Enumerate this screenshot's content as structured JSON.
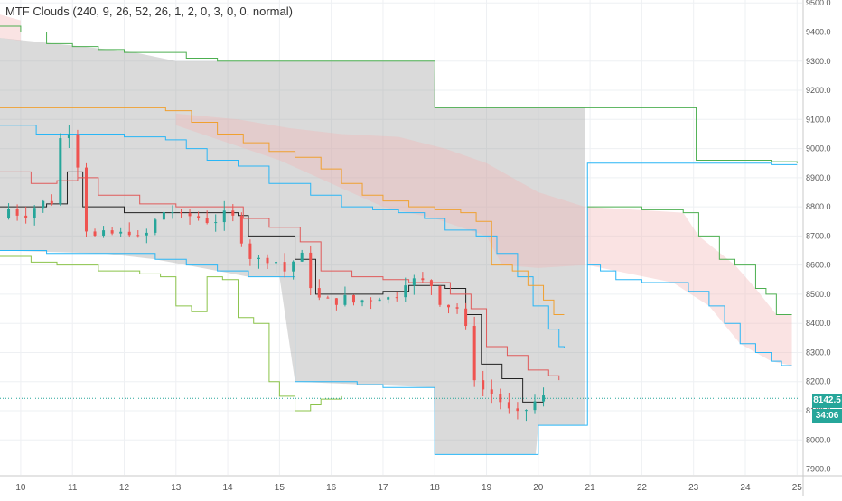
{
  "indicator": {
    "title": "MTF Clouds (240, 9, 26, 52, 26, 1, 2, 0, 3, 0, 0, normal)"
  },
  "last_price": {
    "value": "8142.5",
    "countdown": "34:06"
  },
  "colors": {
    "background": "#ffffff",
    "grid": "#eef0f3",
    "axis_text": "#555555",
    "up": "#26a69a",
    "down": "#ef5350",
    "price_line": "#26a69a",
    "price_label_bg": "#26a69a",
    "cloud_grey": "#9e9e9e",
    "cloud_pink": "#f3b6b6",
    "line_green": "#4caf50",
    "line_blue": "#29b6f6",
    "line_orange": "#f0a030",
    "line_red": "#e05a5a",
    "line_black": "#222222",
    "line_lightgreen": "#8bc34a"
  },
  "chart_data": {
    "type": "line",
    "title": "",
    "xlabel": "",
    "ylabel": "",
    "x_ticks": [
      "10",
      "11",
      "12",
      "13",
      "14",
      "15",
      "16",
      "17",
      "18",
      "19",
      "20",
      "21",
      "22",
      "23",
      "24",
      "25"
    ],
    "y_ticks": [
      "7900.0",
      "8000.0",
      "8100.0",
      "8200.0",
      "8300.0",
      "8400.0",
      "8500.0",
      "8600.0",
      "8700.0",
      "8800.0",
      "8900.0",
      "9000.0",
      "9100.0",
      "9200.0",
      "9300.0",
      "9400.0",
      "9500.0"
    ],
    "xlim": [
      9.6,
      25.1
    ],
    "ylim": [
      7880,
      9510
    ],
    "grid": true,
    "last_price": 8142.5,
    "price_series": [
      [
        9.6,
        8760
      ],
      [
        9.8,
        8800
      ],
      [
        10.0,
        8770
      ],
      [
        10.2,
        8790
      ],
      [
        10.4,
        8820
      ],
      [
        10.5,
        8800
      ],
      [
        10.6,
        8820
      ],
      [
        10.7,
        8960
      ],
      [
        10.8,
        9070
      ],
      [
        10.9,
        9080
      ],
      [
        11.0,
        9040
      ],
      [
        11.1,
        8950
      ],
      [
        11.2,
        8750
      ],
      [
        11.35,
        8700
      ],
      [
        11.5,
        8690
      ],
      [
        11.7,
        8710
      ],
      [
        11.9,
        8700
      ],
      [
        12.1,
        8720
      ],
      [
        12.3,
        8680
      ],
      [
        12.5,
        8720
      ],
      [
        12.7,
        8780
      ],
      [
        12.9,
        8790
      ],
      [
        13.1,
        8760
      ],
      [
        13.3,
        8770
      ],
      [
        13.5,
        8760
      ],
      [
        13.7,
        8750
      ],
      [
        13.9,
        8770
      ],
      [
        14.1,
        8760
      ],
      [
        14.2,
        8720
      ],
      [
        14.35,
        8660
      ],
      [
        14.5,
        8610
      ],
      [
        14.7,
        8620
      ],
      [
        14.9,
        8640
      ],
      [
        15.0,
        8560
      ],
      [
        15.2,
        8600
      ],
      [
        15.4,
        8640
      ],
      [
        15.55,
        8580
      ],
      [
        15.65,
        8490
      ],
      [
        15.8,
        8480
      ],
      [
        16.0,
        8470
      ],
      [
        16.2,
        8490
      ],
      [
        16.4,
        8470
      ],
      [
        16.6,
        8480
      ],
      [
        16.8,
        8490
      ],
      [
        17.0,
        8500
      ],
      [
        17.2,
        8470
      ],
      [
        17.35,
        8550
      ],
      [
        17.5,
        8550
      ],
      [
        17.7,
        8540
      ],
      [
        17.9,
        8540
      ],
      [
        18.0,
        8520
      ],
      [
        18.1,
        8480
      ],
      [
        18.3,
        8460
      ],
      [
        18.5,
        8450
      ],
      [
        18.7,
        8300
      ],
      [
        18.8,
        8180
      ],
      [
        19.0,
        8170
      ],
      [
        19.2,
        8150
      ],
      [
        19.4,
        8100
      ],
      [
        19.6,
        8080
      ],
      [
        19.8,
        8110
      ],
      [
        20.0,
        8140
      ],
      [
        20.1,
        8142.5
      ]
    ],
    "series": [
      {
        "stroke": "line_black",
        "values": [
          [
            9.6,
            8800
          ],
          [
            10.5,
            8810
          ],
          [
            10.9,
            8920
          ],
          [
            11.2,
            8800
          ],
          [
            12.0,
            8780
          ],
          [
            13.0,
            8780
          ],
          [
            14.2,
            8770
          ],
          [
            14.4,
            8700
          ],
          [
            15.3,
            8620
          ],
          [
            15.7,
            8500
          ],
          [
            16.0,
            8500
          ],
          [
            17.0,
            8510
          ],
          [
            17.5,
            8530
          ],
          [
            18.2,
            8520
          ],
          [
            18.6,
            8430
          ],
          [
            18.9,
            8260
          ],
          [
            19.3,
            8210
          ],
          [
            19.7,
            8130
          ],
          [
            20.1,
            8140
          ]
        ]
      },
      {
        "stroke": "line_red",
        "values": [
          [
            9.6,
            8920
          ],
          [
            10.2,
            8880
          ],
          [
            10.7,
            8890
          ],
          [
            11.1,
            8900
          ],
          [
            11.5,
            8840
          ],
          [
            12.3,
            8810
          ],
          [
            13.0,
            8800
          ],
          [
            13.9,
            8800
          ],
          [
            14.3,
            8760
          ],
          [
            14.8,
            8730
          ],
          [
            15.4,
            8680
          ],
          [
            15.8,
            8580
          ],
          [
            16.4,
            8560
          ],
          [
            17.0,
            8550
          ],
          [
            17.5,
            8540
          ],
          [
            17.9,
            8540
          ],
          [
            18.3,
            8500
          ],
          [
            18.7,
            8450
          ],
          [
            19.0,
            8320
          ],
          [
            19.4,
            8290
          ],
          [
            19.8,
            8240
          ],
          [
            20.2,
            8220
          ],
          [
            20.4,
            8205
          ]
        ]
      },
      {
        "stroke": "line_blue",
        "values": [
          [
            9.6,
            9080
          ],
          [
            10.3,
            9050
          ],
          [
            10.8,
            9050
          ],
          [
            11.2,
            9050
          ],
          [
            11.8,
            9050
          ],
          [
            12.0,
            9040
          ],
          [
            12.8,
            9030
          ],
          [
            13.2,
            9000
          ],
          [
            13.6,
            8960
          ],
          [
            14.2,
            8940
          ],
          [
            14.8,
            8880
          ],
          [
            15.2,
            8880
          ],
          [
            15.6,
            8840
          ],
          [
            16.2,
            8800
          ],
          [
            16.8,
            8790
          ],
          [
            17.3,
            8780
          ],
          [
            17.8,
            8760
          ],
          [
            18.2,
            8720
          ],
          [
            18.8,
            8700
          ],
          [
            19.2,
            8640
          ],
          [
            19.6,
            8560
          ],
          [
            19.9,
            8460
          ],
          [
            20.2,
            8380
          ],
          [
            20.4,
            8320
          ],
          [
            20.5,
            8315
          ]
        ]
      },
      {
        "stroke": "line_orange",
        "values": [
          [
            9.6,
            9140
          ],
          [
            10.5,
            9140
          ],
          [
            11.2,
            9140
          ],
          [
            12.2,
            9140
          ],
          [
            12.8,
            9130
          ],
          [
            13.3,
            9090
          ],
          [
            13.8,
            9050
          ],
          [
            14.3,
            9020
          ],
          [
            14.8,
            8990
          ],
          [
            15.3,
            8970
          ],
          [
            15.8,
            8930
          ],
          [
            16.2,
            8880
          ],
          [
            16.6,
            8840
          ],
          [
            17.0,
            8820
          ],
          [
            17.5,
            8800
          ],
          [
            18.0,
            8790
          ],
          [
            18.5,
            8780
          ],
          [
            18.8,
            8750
          ],
          [
            19.1,
            8600
          ],
          [
            19.5,
            8580
          ],
          [
            19.8,
            8530
          ],
          [
            20.1,
            8480
          ],
          [
            20.3,
            8430
          ],
          [
            20.5,
            8430
          ]
        ]
      },
      {
        "stroke": "line_blue",
        "values": [
          [
            9.6,
            8650
          ],
          [
            10.5,
            8640
          ],
          [
            11.2,
            8640
          ],
          [
            11.6,
            8640
          ],
          [
            12.2,
            8640
          ],
          [
            12.6,
            8620
          ],
          [
            13.2,
            8600
          ],
          [
            13.8,
            8580
          ],
          [
            14.4,
            8560
          ],
          [
            15.0,
            8560
          ],
          [
            15.3,
            8200
          ],
          [
            16.5,
            8190
          ],
          [
            17.0,
            8180
          ],
          [
            17.5,
            8180
          ],
          [
            17.95,
            8180
          ],
          [
            18.0,
            7950
          ],
          [
            19.0,
            7950
          ],
          [
            19.95,
            7950
          ],
          [
            20.0,
            8050
          ],
          [
            20.9,
            8050
          ],
          [
            20.95,
            8950
          ],
          [
            21.3,
            8950
          ],
          [
            22.5,
            8950
          ],
          [
            23.8,
            8950
          ],
          [
            24.5,
            8945
          ],
          [
            25.0,
            8945
          ]
        ]
      },
      {
        "stroke": "line_green",
        "values": [
          [
            9.6,
            9420
          ],
          [
            10.0,
            9400
          ],
          [
            10.5,
            9360
          ],
          [
            11.0,
            9350
          ],
          [
            11.5,
            9340
          ],
          [
            12.0,
            9330
          ],
          [
            12.6,
            9330
          ],
          [
            13.2,
            9310
          ],
          [
            13.8,
            9300
          ],
          [
            14.4,
            9300
          ],
          [
            15.2,
            9300
          ],
          [
            16.2,
            9300
          ],
          [
            17.1,
            9300
          ],
          [
            17.97,
            9300
          ],
          [
            18.0,
            9140
          ],
          [
            18.6,
            9140
          ],
          [
            19.4,
            9140
          ],
          [
            20.2,
            9140
          ],
          [
            21.0,
            9140
          ],
          [
            21.8,
            9140
          ],
          [
            22.5,
            9140
          ],
          [
            23.0,
            9140
          ],
          [
            23.05,
            8960
          ],
          [
            24.0,
            8960
          ],
          [
            24.5,
            8955
          ],
          [
            25.0,
            8950
          ]
        ]
      },
      {
        "stroke": "line_green",
        "values": [
          [
            20.95,
            8800
          ],
          [
            21.3,
            8800
          ],
          [
            22.0,
            8790
          ],
          [
            22.6,
            8790
          ],
          [
            22.8,
            8780
          ],
          [
            23.1,
            8700
          ],
          [
            23.5,
            8620
          ],
          [
            23.8,
            8600
          ],
          [
            24.2,
            8520
          ],
          [
            24.4,
            8500
          ],
          [
            24.6,
            8430
          ],
          [
            24.9,
            8430
          ]
        ]
      },
      {
        "stroke": "line_blue",
        "values": [
          [
            20.95,
            8600
          ],
          [
            21.2,
            8580
          ],
          [
            21.5,
            8550
          ],
          [
            22.0,
            8540
          ],
          [
            22.6,
            8540
          ],
          [
            22.9,
            8510
          ],
          [
            23.3,
            8460
          ],
          [
            23.6,
            8400
          ],
          [
            23.9,
            8330
          ],
          [
            24.2,
            8300
          ],
          [
            24.5,
            8270
          ],
          [
            24.7,
            8255
          ],
          [
            24.9,
            8255
          ]
        ]
      },
      {
        "stroke": "line_lightgreen",
        "values": [
          [
            9.6,
            8630
          ],
          [
            10.2,
            8610
          ],
          [
            10.7,
            8600
          ],
          [
            11.1,
            8600
          ],
          [
            11.5,
            8580
          ],
          [
            11.9,
            8580
          ],
          [
            12.3,
            8570
          ],
          [
            12.7,
            8560
          ],
          [
            13.0,
            8460
          ],
          [
            13.3,
            8440
          ],
          [
            13.6,
            8560
          ],
          [
            13.9,
            8550
          ],
          [
            14.2,
            8420
          ],
          [
            14.5,
            8400
          ],
          [
            14.8,
            8200
          ],
          [
            15.0,
            8150
          ],
          [
            15.3,
            8100
          ],
          [
            15.6,
            8120
          ],
          [
            15.8,
            8140
          ],
          [
            16.2,
            8150
          ]
        ]
      }
    ],
    "clouds": [
      {
        "color": "cloud_grey",
        "upper": [
          [
            9.6,
            9380
          ],
          [
            11.2,
            9350
          ],
          [
            12.2,
            9330
          ],
          [
            13.0,
            9300
          ],
          [
            14.5,
            9300
          ],
          [
            17.98,
            9300
          ],
          [
            18.0,
            9140
          ],
          [
            20.2,
            9140
          ],
          [
            20.9,
            9140
          ]
        ],
        "lower": [
          [
            9.6,
            8650
          ],
          [
            11.6,
            8640
          ],
          [
            12.6,
            8620
          ],
          [
            14.4,
            8560
          ],
          [
            15.0,
            8560
          ],
          [
            15.3,
            8200
          ],
          [
            17.98,
            8180
          ],
          [
            18.0,
            7950
          ],
          [
            19.95,
            7950
          ],
          [
            20.0,
            8050
          ],
          [
            20.9,
            8050
          ]
        ]
      },
      {
        "color": "cloud_pink",
        "upper": [
          [
            13.0,
            9120
          ],
          [
            14.2,
            9100
          ],
          [
            15.2,
            9070
          ],
          [
            16.2,
            9050
          ],
          [
            17.3,
            9040
          ],
          [
            18.2,
            9000
          ],
          [
            19.0,
            8950
          ],
          [
            20.0,
            8850
          ],
          [
            20.9,
            8800
          ]
        ],
        "lower": [
          [
            13.0,
            9080
          ],
          [
            14.0,
            9020
          ],
          [
            15.0,
            8960
          ],
          [
            16.0,
            8880
          ],
          [
            17.0,
            8800
          ],
          [
            18.0,
            8760
          ],
          [
            19.0,
            8700
          ],
          [
            19.3,
            8600
          ],
          [
            20.0,
            8590
          ],
          [
            20.9,
            8600
          ]
        ]
      },
      {
        "color": "cloud_pink",
        "upper": [
          [
            9.6,
            9460
          ],
          [
            10.0,
            9440
          ]
        ],
        "lower": [
          [
            9.6,
            9380
          ],
          [
            10.0,
            9370
          ]
        ]
      },
      {
        "color": "cloud_pink",
        "upper": [
          [
            20.95,
            8800
          ],
          [
            22.8,
            8780
          ],
          [
            23.1,
            8700
          ],
          [
            23.8,
            8600
          ],
          [
            24.2,
            8520
          ],
          [
            24.6,
            8430
          ],
          [
            24.9,
            8430
          ]
        ],
        "lower": [
          [
            20.95,
            8600
          ],
          [
            22.6,
            8540
          ],
          [
            23.3,
            8460
          ],
          [
            23.9,
            8330
          ],
          [
            24.5,
            8270
          ],
          [
            24.9,
            8255
          ]
        ]
      }
    ]
  }
}
